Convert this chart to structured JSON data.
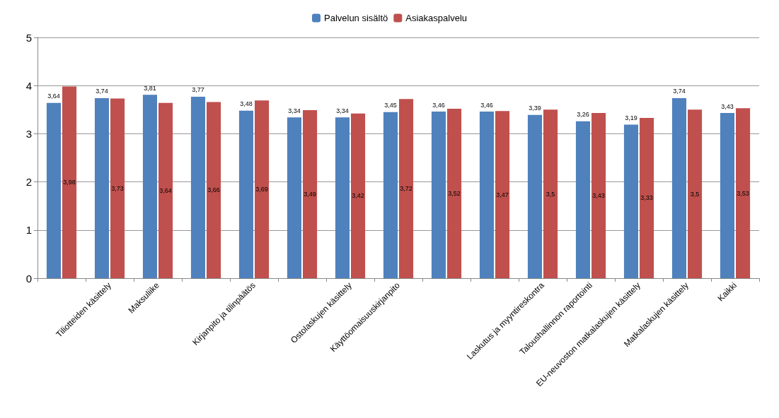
{
  "chart_data": {
    "type": "bar",
    "categories": [
      null,
      "Tiliotteiden käsittely",
      "Maksuliike",
      null,
      "Kirjanpito ja tilinpäätös",
      null,
      "Ostolaskujen käsittely",
      "Käyttöomaisuuskirjanpito",
      null,
      null,
      "Laskutus ja myyntireskontra",
      "Taloushallinnon raportointi",
      "EU-neuvoston matkalaskujen käsittely",
      "Matkalaskujen käsittely",
      "Kaikki"
    ],
    "series": [
      {
        "name": "Palvelun sisältö",
        "color": "#4f81bd",
        "values": [
          3.64,
          3.74,
          3.81,
          3.77,
          3.48,
          3.34,
          3.34,
          3.45,
          3.46,
          3.46,
          3.39,
          3.26,
          3.19,
          3.74,
          3.43
        ],
        "value_labels": [
          "3,64",
          "3,74",
          "3,81",
          "3,77",
          "3,48",
          "3,34",
          "3,34",
          "3,45",
          "3,46",
          "3,46",
          "3,39",
          "3,26",
          "3,19",
          "3,74",
          "3,43"
        ]
      },
      {
        "name": "Asiakaspalvelu",
        "color": "#c0504d",
        "values": [
          3.98,
          3.73,
          3.64,
          3.66,
          3.69,
          3.49,
          3.42,
          3.72,
          3.52,
          3.47,
          3.5,
          3.43,
          3.33,
          3.5,
          3.53
        ],
        "value_labels": [
          "3,98",
          "3,73",
          "3,64",
          "3,66",
          "3,69",
          "3,49",
          "3,42",
          "3,72",
          "3,52",
          "3,47",
          "3,5",
          "3,43",
          "3,33",
          "3,5",
          "3,53"
        ]
      }
    ],
    "ylim": [
      0,
      5
    ],
    "yticks": [
      0,
      1,
      2,
      3,
      4,
      5
    ],
    "grid": "y",
    "legend": "top"
  }
}
